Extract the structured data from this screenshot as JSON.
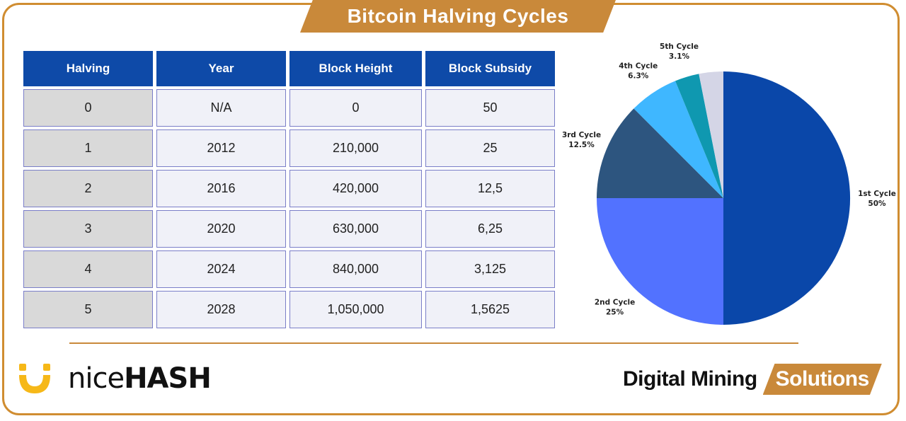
{
  "title": "Bitcoin Halving Cycles",
  "table": {
    "headers": [
      "Halving",
      "Year",
      "Block Height",
      "Block Subsidy"
    ],
    "rows": [
      [
        "0",
        "N/A",
        "0",
        "50"
      ],
      [
        "1",
        "2012",
        "210,000",
        "25"
      ],
      [
        "2",
        "2016",
        "420,000",
        "12,5"
      ],
      [
        "3",
        "2020",
        "630,000",
        "6,25"
      ],
      [
        "4",
        "2024",
        "840,000",
        "3,125"
      ],
      [
        "5",
        "2028",
        "1,050,000",
        "1,5625"
      ]
    ]
  },
  "chart_data": {
    "type": "pie",
    "title": "",
    "slices": [
      {
        "name": "1st Cycle",
        "label": "50%",
        "value": 50,
        "color": "#0a47a9"
      },
      {
        "name": "2nd Cycle",
        "label": "25%",
        "value": 25,
        "color": "#5272ff"
      },
      {
        "name": "3rd Cycle",
        "label": "12.5%",
        "value": 12.5,
        "color": "#2d557f"
      },
      {
        "name": "4th Cycle",
        "label": "6.3%",
        "value": 6.3,
        "color": "#3fb7ff"
      },
      {
        "name": "5th Cycle",
        "label": "3.1%",
        "value": 3.1,
        "color": "#0f98b0"
      },
      {
        "name": "",
        "label": "",
        "value": 3.1,
        "color": "#d4d5e6"
      }
    ]
  },
  "branding": {
    "nicehash_light": "nice",
    "nicehash_bold": "HASH",
    "dms_dark": "Digital Mining",
    "dms_accent": "Solutions"
  },
  "colors": {
    "accent": "#c9893a",
    "header_blue": "#0e4aa8",
    "logo_yellow": "#f6b818"
  }
}
